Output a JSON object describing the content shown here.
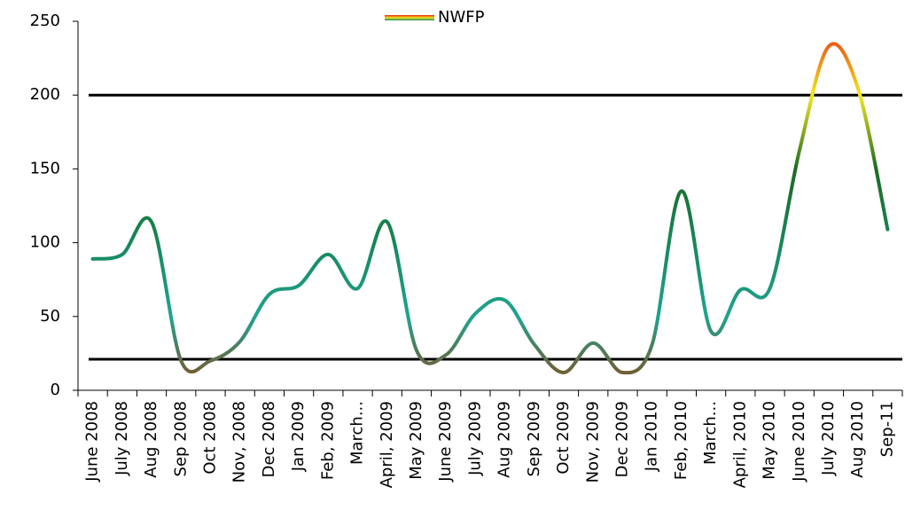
{
  "chart_data": {
    "type": "line",
    "categories": [
      "June 2008",
      "July 2008",
      "Aug 2008",
      "Sep 2008",
      "Oct 2008",
      "Nov, 2008",
      "Dec 2008",
      "Jan 2009",
      "Feb, 2009",
      "March...",
      "April, 2009",
      "May 2009",
      "June 2009",
      "July 2009",
      "Aug 2009",
      "Sep 2009",
      "Oct 2009",
      "Nov, 2009",
      "Dec 2009",
      "Jan 2010",
      "Feb, 2010",
      "March...",
      "April, 2010",
      "May 2010",
      "June 2010",
      "July 2010",
      "Aug 2010",
      "Sep-11"
    ],
    "series": [
      {
        "name": "NWFP",
        "colors": [
          "#8a4a1a",
          "#1ea48f",
          "#17875a",
          "#1c6a22",
          "#f2e81e",
          "#e8200f"
        ],
        "values": [
          89,
          92,
          114,
          20,
          20,
          33,
          65,
          71,
          92,
          69,
          114,
          27,
          24,
          52,
          61,
          31,
          12,
          32,
          12,
          31,
          135,
          40,
          68,
          69,
          162,
          233,
          204,
          109
        ]
      }
    ],
    "reference_lines": [
      200,
      21
    ],
    "ylim": [
      0,
      250
    ],
    "yticks": [
      0,
      50,
      100,
      150,
      200,
      250
    ],
    "legend": "top"
  }
}
